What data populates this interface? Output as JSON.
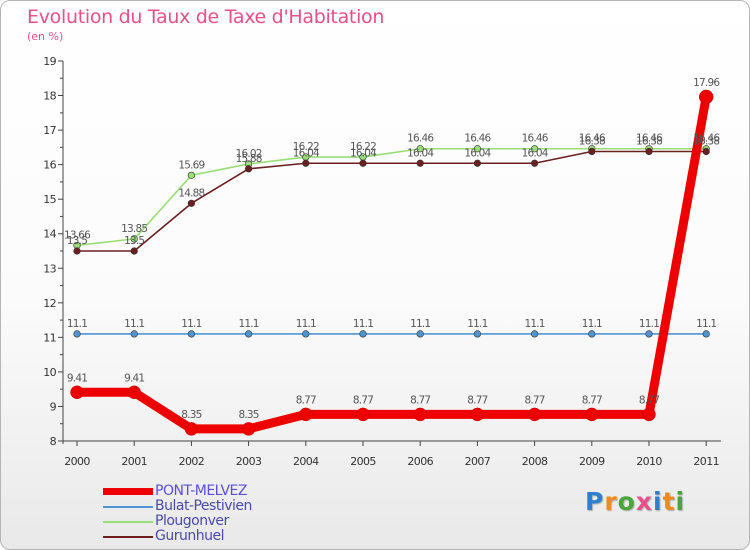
{
  "chart_data": {
    "type": "line",
    "title": "Evolution du Taux de Taxe d'Habitation",
    "ylabel": "(en %)",
    "xlabel": "",
    "x": [
      "2000",
      "2001",
      "2002",
      "2003",
      "2004",
      "2005",
      "2006",
      "2007",
      "2008",
      "2009",
      "2010",
      "2011"
    ],
    "ylim": [
      8,
      19
    ],
    "yticks": [
      8,
      9,
      10,
      11,
      12,
      13,
      14,
      15,
      16,
      17,
      18,
      19
    ],
    "grid": false,
    "legend_position": "bottom-left",
    "series": [
      {
        "name": "PONT-MELVEZ",
        "color": "#ee0000",
        "values": [
          9.41,
          9.41,
          8.35,
          8.35,
          8.77,
          8.77,
          8.77,
          8.77,
          8.77,
          8.77,
          8.77,
          17.96
        ],
        "labels": [
          "9.41",
          "9.41",
          "8.35",
          "8.35",
          "8.77",
          "8.77",
          "8.77",
          "8.77",
          "8.77",
          "8.77",
          "8.77",
          "17.96"
        ]
      },
      {
        "name": "Bulat-Pestivien",
        "color": "#4f94d1",
        "values": [
          11.1,
          11.1,
          11.1,
          11.1,
          11.1,
          11.1,
          11.1,
          11.1,
          11.1,
          11.1,
          11.1,
          11.1
        ],
        "labels": [
          "11.1",
          "11.1",
          "11.1",
          "11.1",
          "11.1",
          "11.1",
          "11.1",
          "11.1",
          "11.1",
          "11.1",
          "11.1",
          "11.1"
        ]
      },
      {
        "name": "Plougonver",
        "color": "#99dd77",
        "values": [
          13.66,
          13.85,
          15.69,
          16.02,
          16.22,
          16.22,
          16.46,
          16.46,
          16.46,
          16.46,
          16.46,
          16.46
        ],
        "labels": [
          "13.66",
          "13.85",
          "15.69",
          "16.02",
          "16.22",
          "16.22",
          "16.46",
          "16.46",
          "16.46",
          "16.46",
          "16.46",
          "16.46"
        ]
      },
      {
        "name": "Gurunhuel",
        "color": "#6b1f1f",
        "values": [
          13.5,
          13.5,
          14.88,
          15.88,
          16.04,
          16.04,
          16.04,
          16.04,
          16.04,
          16.38,
          16.38,
          16.38
        ],
        "labels": [
          "13.5",
          "13.5",
          "14.88",
          "15.88",
          "16.04",
          "16.04",
          "16.04",
          "16.04",
          "16.04",
          "16.38",
          "16.38",
          "16.38"
        ]
      }
    ]
  },
  "logo": {
    "letters": [
      "P",
      "r",
      "o",
      "x",
      "i",
      "t",
      "i"
    ],
    "colors": [
      "#2f7fd0",
      "#f08a1d",
      "#4aa53a",
      "#e8508a",
      "#2f7fd0",
      "#f08a1d",
      "#4aa53a"
    ]
  }
}
